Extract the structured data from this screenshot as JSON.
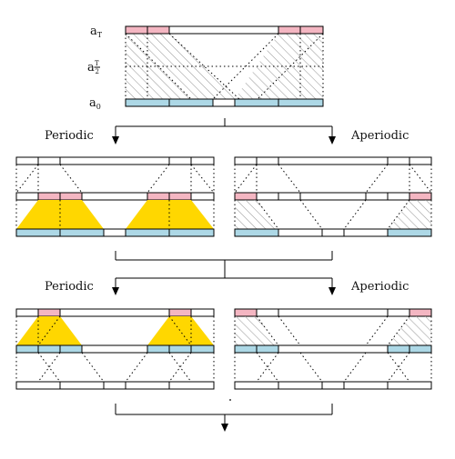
{
  "labels": {
    "a_top_base": "a",
    "a_top_sub": "T",
    "a_mid_base": "a",
    "a_mid_num": "T",
    "a_mid_den": "2",
    "a_bottom_base": "a",
    "a_bottom_sub": "0"
  },
  "branches": {
    "level1_left": "Periodic",
    "level1_right": "Aperiodic",
    "level2_left": "Periodic",
    "level2_right": "Aperiodic"
  },
  "colors": {
    "pink": "#F4B6C2",
    "blue": "#ADD8E6",
    "gold": "#FFD700",
    "hatch": "#9a9a9a",
    "line": "#000000"
  }
}
